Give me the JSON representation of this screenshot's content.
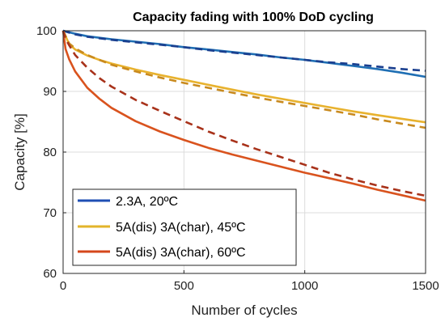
{
  "chart_data": {
    "type": "line",
    "title": "Capacity fading with 100% DoD cycling",
    "xlabel": "Number of cycles",
    "ylabel": "Capacity [%]",
    "xlim": [
      0,
      1500
    ],
    "ylim": [
      60,
      100
    ],
    "xticks": [
      0,
      500,
      1000,
      1500
    ],
    "yticks": [
      60,
      70,
      80,
      90,
      100
    ],
    "grid": true,
    "legend_position": "bottom-left",
    "legend": [
      {
        "label": "2.3A, 20ºC",
        "color": "#1f4fb4"
      },
      {
        "label": "5A(dis) 3A(char), 45ºC",
        "color": "#e2b42a"
      },
      {
        "label": "5A(dis) 3A(char), 60ºC",
        "color": "#d4471c"
      }
    ],
    "series": [
      {
        "color": "#1f6fb4",
        "dash": false,
        "x": [
          0,
          50,
          100,
          200,
          300,
          400,
          500,
          600,
          700,
          800,
          900,
          1000,
          1100,
          1200,
          1300,
          1400,
          1500
        ],
        "y": [
          100,
          99.5,
          99.1,
          98.6,
          98.2,
          97.8,
          97.3,
          96.9,
          96.5,
          96.1,
          95.6,
          95.2,
          94.7,
          94.2,
          93.7,
          93.1,
          92.4
        ]
      },
      {
        "color": "#1a3f8f",
        "dash": true,
        "x": [
          0,
          50,
          100,
          200,
          300,
          400,
          500,
          600,
          700,
          800,
          900,
          1000,
          1100,
          1200,
          1300,
          1400,
          1500
        ],
        "y": [
          100,
          99.4,
          99.0,
          98.5,
          98.1,
          97.7,
          97.3,
          96.8,
          96.4,
          96.0,
          95.6,
          95.2,
          94.8,
          94.5,
          94.1,
          93.7,
          93.4
        ]
      },
      {
        "color": "#e8b22e",
        "dash": false,
        "x": [
          0,
          25,
          50,
          100,
          150,
          200,
          300,
          400,
          500,
          600,
          700,
          800,
          900,
          1000,
          1100,
          1200,
          1300,
          1400,
          1500
        ],
        "y": [
          100,
          97.8,
          96.9,
          95.9,
          95.2,
          94.6,
          93.6,
          92.7,
          91.9,
          91.1,
          90.3,
          89.5,
          88.8,
          88.1,
          87.4,
          86.7,
          86.1,
          85.5,
          84.9
        ]
      },
      {
        "color": "#c98a1e",
        "dash": true,
        "x": [
          0,
          25,
          50,
          100,
          150,
          200,
          300,
          400,
          500,
          600,
          700,
          800,
          900,
          1000,
          1100,
          1200,
          1300,
          1400,
          1500
        ],
        "y": [
          100,
          97.9,
          97.1,
          96.0,
          95.2,
          94.4,
          93.3,
          92.3,
          91.4,
          90.6,
          89.8,
          89.0,
          88.3,
          87.6,
          86.9,
          86.2,
          85.4,
          84.7,
          84.0
        ]
      },
      {
        "color": "#d9531e",
        "dash": false,
        "x": [
          0,
          10,
          25,
          50,
          100,
          150,
          200,
          300,
          400,
          500,
          600,
          700,
          800,
          900,
          1000,
          1100,
          1200,
          1300,
          1400,
          1500
        ],
        "y": [
          100,
          97.0,
          95.3,
          93.3,
          90.6,
          88.8,
          87.3,
          85.1,
          83.4,
          82.0,
          80.7,
          79.6,
          78.6,
          77.6,
          76.6,
          75.7,
          74.8,
          73.8,
          72.9,
          72.0
        ]
      },
      {
        "color": "#a8321a",
        "dash": true,
        "x": [
          0,
          10,
          25,
          50,
          100,
          150,
          200,
          300,
          400,
          500,
          600,
          700,
          800,
          900,
          1000,
          1100,
          1200,
          1300,
          1400,
          1500
        ],
        "y": [
          100,
          98.7,
          97.6,
          96.0,
          93.9,
          92.2,
          90.8,
          88.6,
          86.8,
          85.1,
          83.4,
          81.9,
          80.5,
          79.2,
          77.9,
          76.6,
          75.5,
          74.5,
          73.6,
          72.8
        ]
      }
    ]
  }
}
